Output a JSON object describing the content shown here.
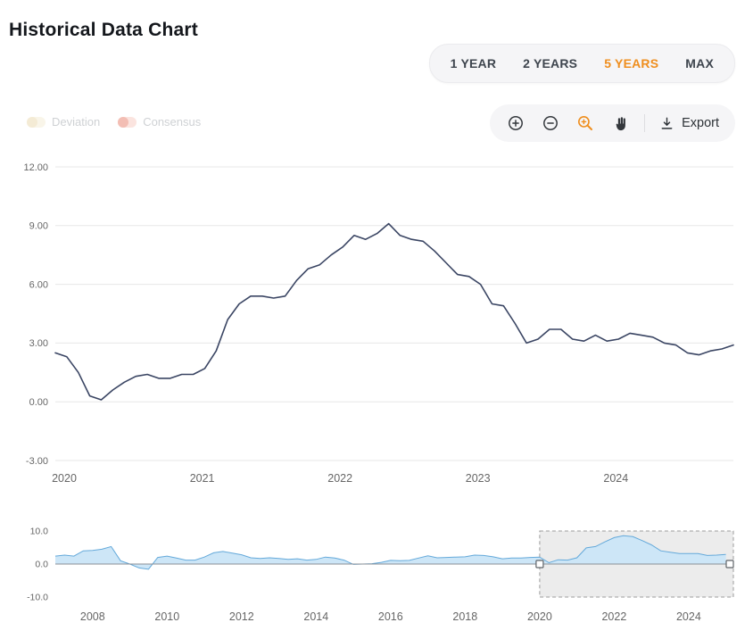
{
  "header": {
    "title": "Historical Data Chart"
  },
  "range_selector": {
    "options": [
      {
        "label": "1 YEAR",
        "active": false
      },
      {
        "label": "2 YEARS",
        "active": false
      },
      {
        "label": "5 YEARS",
        "active": true
      },
      {
        "label": "MAX",
        "active": false
      }
    ]
  },
  "legend": {
    "items": [
      {
        "label": "Deviation",
        "pill_color": "#f0e6c8",
        "knob_color": "#e3cc93",
        "enabled": false
      },
      {
        "label": "Consensus",
        "pill_color": "#f5baad",
        "knob_color": "#e2573d",
        "enabled": false
      }
    ]
  },
  "toolbar": {
    "export_label": "Export",
    "icons": [
      "zoom-in-icon",
      "zoom-out-icon",
      "zoom-selection-icon",
      "pan-icon",
      "download-icon"
    ],
    "active_tool": "zoom-selection"
  },
  "colors": {
    "accent_orange": "#ef8e1e",
    "main_line": "#3a4563",
    "navigator_area": "#cde6f7",
    "navigator_line": "#64a9da",
    "axis_label": "#666666",
    "gridline": "#e7e7e7"
  },
  "chart_data": [
    {
      "type": "line",
      "name": "main-series",
      "x_start_year": 2020,
      "months_per_point": 1,
      "values": [
        2.5,
        2.3,
        1.5,
        0.3,
        0.1,
        0.6,
        1.0,
        1.3,
        1.4,
        1.2,
        1.2,
        1.4,
        1.4,
        1.7,
        2.6,
        4.2,
        5.0,
        5.4,
        5.4,
        5.3,
        5.4,
        6.2,
        6.8,
        7.0,
        7.5,
        7.9,
        8.5,
        8.3,
        8.6,
        9.1,
        8.5,
        8.3,
        8.2,
        7.7,
        7.1,
        6.5,
        6.4,
        6.0,
        5.0,
        4.9,
        4.0,
        3.0,
        3.2,
        3.7,
        3.7,
        3.2,
        3.1,
        3.4,
        3.1,
        3.2,
        3.5,
        3.4,
        3.3,
        3.0,
        2.9,
        2.5,
        2.4,
        2.6,
        2.7,
        2.9
      ],
      "ylim": [
        -3,
        12
      ],
      "yticks": [
        12,
        9,
        6,
        3,
        0,
        -3
      ],
      "ytick_labels": [
        "12.00",
        "9.00",
        "6.00",
        "3.00",
        "0.00",
        "-3.00"
      ],
      "xticks": [
        2020,
        2021,
        2022,
        2023,
        2024
      ],
      "grid": true,
      "line_color": "#3a4563"
    },
    {
      "type": "area",
      "name": "navigator-series",
      "x_domain": [
        2007.0,
        2025.2
      ],
      "years_per_point": 0.25,
      "values": [
        2.4,
        2.7,
        2.4,
        4.0,
        4.1,
        4.5,
        5.3,
        1.0,
        0.0,
        -1.2,
        -1.6,
        2.0,
        2.4,
        1.8,
        1.2,
        1.2,
        2.1,
        3.4,
        3.8,
        3.3,
        2.8,
        1.9,
        1.7,
        1.9,
        1.7,
        1.4,
        1.6,
        1.2,
        1.4,
        2.1,
        1.8,
        1.2,
        -0.1,
        0.0,
        0.1,
        0.5,
        1.1,
        1.0,
        1.1,
        1.8,
        2.5,
        1.9,
        2.0,
        2.1,
        2.2,
        2.7,
        2.6,
        2.2,
        1.6,
        1.8,
        1.8,
        2.0,
        2.1,
        0.4,
        1.3,
        1.2,
        1.9,
        4.9,
        5.3,
        6.7,
        8.0,
        8.6,
        8.3,
        7.1,
        5.8,
        4.0,
        3.6,
        3.2,
        3.2,
        3.2,
        2.6,
        2.7,
        2.9
      ],
      "ylim": [
        -10,
        10
      ],
      "yticks": [
        10,
        0,
        -10
      ],
      "ytick_labels": [
        "10.0",
        "0.0",
        "-10.0"
      ],
      "xticks": [
        2008,
        2010,
        2012,
        2014,
        2016,
        2018,
        2020,
        2022,
        2024
      ],
      "area_color": "#cde6f7",
      "line_color": "#64a9da",
      "selection": {
        "from_year": 2020.0,
        "to_year": 2025.2
      }
    }
  ]
}
